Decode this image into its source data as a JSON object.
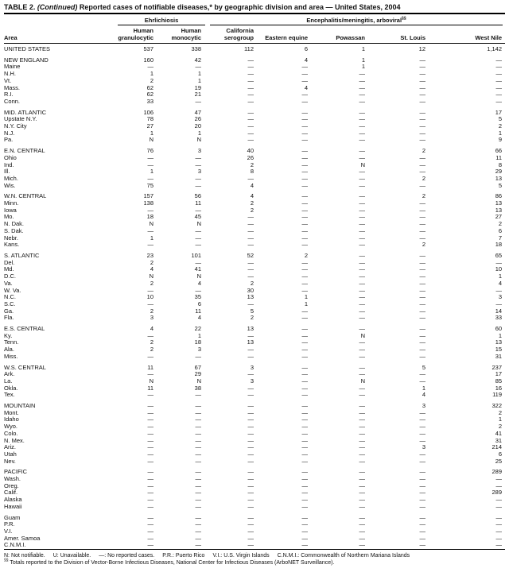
{
  "title": {
    "prefix": "TABLE 2.",
    "continued": "(Continued)",
    "rest": "Reported cases of notifiable diseases,* by geographic division and area — United States, 2004"
  },
  "header": {
    "area_label": "Area",
    "groups": [
      {
        "label": "Ehrlichiosis",
        "sup": "",
        "span": 2
      },
      {
        "label": "Encephalitis/meningitis,  arboviral",
        "sup": "§§",
        "span": 5
      }
    ],
    "columns": [
      "Human granulocytic",
      "Human monocytic",
      "California serogroup",
      "Eastern equine",
      "Powassan",
      "St. Louis",
      "West Nile"
    ]
  },
  "chart_data": {
    "type": "table",
    "title": "TABLE 2. (Continued) Reported cases of notifiable diseases, by geographic division and area — United States, 2004",
    "columns": [
      "Area",
      "Ehrlichiosis: Human granulocytic",
      "Ehrlichiosis: Human monocytic",
      "Encephalitis/meningitis, arboviral: California serogroup",
      "Eastern equine",
      "Powassan",
      "St. Louis",
      "West Nile"
    ]
  },
  "table": {
    "sections": [
      {
        "rows": [
          {
            "area": "UNITED STATES",
            "values": [
              "537",
              "338",
              "112",
              "6",
              "1",
              "12",
              "1,142"
            ]
          }
        ]
      },
      {
        "rows": [
          {
            "area": "NEW ENGLAND",
            "values": [
              "160",
              "42",
              "—",
              "4",
              "1",
              "—",
              "—"
            ]
          },
          {
            "area": "Maine",
            "values": [
              "—",
              "—",
              "—",
              "—",
              "1",
              "—",
              "—"
            ]
          },
          {
            "area": "N.H.",
            "values": [
              "1",
              "1",
              "—",
              "—",
              "—",
              "—",
              "—"
            ]
          },
          {
            "area": "Vt.",
            "values": [
              "2",
              "1",
              "—",
              "—",
              "—",
              "—",
              "—"
            ]
          },
          {
            "area": "Mass.",
            "values": [
              "62",
              "19",
              "—",
              "4",
              "—",
              "—",
              "—"
            ]
          },
          {
            "area": "R.I.",
            "values": [
              "62",
              "21",
              "—",
              "—",
              "—",
              "—",
              "—"
            ]
          },
          {
            "area": "Conn.",
            "values": [
              "33",
              "—",
              "—",
              "—",
              "—",
              "—",
              "—"
            ]
          }
        ]
      },
      {
        "rows": [
          {
            "area": "MID. ATLANTIC",
            "values": [
              "106",
              "47",
              "—",
              "—",
              "—",
              "—",
              "17"
            ]
          },
          {
            "area": "Upstate N.Y.",
            "values": [
              "78",
              "26",
              "—",
              "—",
              "—",
              "—",
              "5"
            ]
          },
          {
            "area": "N.Y. City",
            "values": [
              "27",
              "20",
              "—",
              "—",
              "—",
              "—",
              "2"
            ]
          },
          {
            "area": "N.J.",
            "values": [
              "1",
              "1",
              "—",
              "—",
              "—",
              "—",
              "1"
            ]
          },
          {
            "area": "Pa.",
            "values": [
              "N",
              "N",
              "—",
              "—",
              "—",
              "—",
              "9"
            ]
          }
        ]
      },
      {
        "rows": [
          {
            "area": "E.N. CENTRAL",
            "values": [
              "76",
              "3",
              "40",
              "—",
              "—",
              "2",
              "66"
            ]
          },
          {
            "area": "Ohio",
            "values": [
              "—",
              "—",
              "26",
              "—",
              "—",
              "—",
              "11"
            ]
          },
          {
            "area": "Ind.",
            "values": [
              "—",
              "—",
              "2",
              "—",
              "N",
              "—",
              "8"
            ]
          },
          {
            "area": "Ill.",
            "values": [
              "1",
              "3",
              "8",
              "—",
              "—",
              "—",
              "29"
            ]
          },
          {
            "area": "Mich.",
            "values": [
              "—",
              "—",
              "—",
              "—",
              "—",
              "2",
              "13"
            ]
          },
          {
            "area": "Wis.",
            "values": [
              "75",
              "—",
              "4",
              "—",
              "—",
              "—",
              "5"
            ]
          }
        ]
      },
      {
        "rows": [
          {
            "area": "W.N. CENTRAL",
            "values": [
              "157",
              "56",
              "4",
              "—",
              "—",
              "2",
              "86"
            ]
          },
          {
            "area": "Minn.",
            "values": [
              "138",
              "11",
              "2",
              "—",
              "—",
              "—",
              "13"
            ]
          },
          {
            "area": "Iowa",
            "values": [
              "—",
              "—",
              "2",
              "—",
              "—",
              "—",
              "13"
            ]
          },
          {
            "area": "Mo.",
            "values": [
              "18",
              "45",
              "—",
              "—",
              "—",
              "—",
              "27"
            ]
          },
          {
            "area": "N. Dak.",
            "values": [
              "N",
              "N",
              "—",
              "—",
              "—",
              "—",
              "2"
            ]
          },
          {
            "area": "S. Dak.",
            "values": [
              "—",
              "—",
              "—",
              "—",
              "—",
              "—",
              "6"
            ]
          },
          {
            "area": "Nebr.",
            "values": [
              "1",
              "—",
              "—",
              "—",
              "—",
              "—",
              "7"
            ]
          },
          {
            "area": "Kans.",
            "values": [
              "—",
              "—",
              "—",
              "—",
              "—",
              "2",
              "18"
            ]
          }
        ]
      },
      {
        "rows": [
          {
            "area": "S. ATLANTIC",
            "values": [
              "23",
              "101",
              "52",
              "2",
              "—",
              "—",
              "65"
            ]
          },
          {
            "area": "Del.",
            "values": [
              "2",
              "—",
              "—",
              "—",
              "—",
              "—",
              "—"
            ]
          },
          {
            "area": "Md.",
            "values": [
              "4",
              "41",
              "—",
              "—",
              "—",
              "—",
              "10"
            ]
          },
          {
            "area": "D.C.",
            "values": [
              "N",
              "N",
              "—",
              "—",
              "—",
              "—",
              "1"
            ]
          },
          {
            "area": "Va.",
            "values": [
              "2",
              "4",
              "2",
              "—",
              "—",
              "—",
              "4"
            ]
          },
          {
            "area": "W. Va.",
            "values": [
              "—",
              "—",
              "30",
              "—",
              "—",
              "—",
              "—"
            ]
          },
          {
            "area": "N.C.",
            "values": [
              "10",
              "35",
              "13",
              "1",
              "—",
              "—",
              "3"
            ]
          },
          {
            "area": "S.C.",
            "values": [
              "—",
              "6",
              "—",
              "1",
              "—",
              "—",
              "—"
            ]
          },
          {
            "area": "Ga.",
            "values": [
              "2",
              "11",
              "5",
              "—",
              "—",
              "—",
              "14"
            ]
          },
          {
            "area": "Fla.",
            "values": [
              "3",
              "4",
              "2",
              "—",
              "—",
              "—",
              "33"
            ]
          }
        ]
      },
      {
        "rows": [
          {
            "area": "E.S. CENTRAL",
            "values": [
              "4",
              "22",
              "13",
              "—",
              "—",
              "—",
              "60"
            ]
          },
          {
            "area": "Ky.",
            "values": [
              "—",
              "1",
              "—",
              "—",
              "N",
              "—",
              "1"
            ]
          },
          {
            "area": "Tenn.",
            "values": [
              "2",
              "18",
              "13",
              "—",
              "—",
              "—",
              "13"
            ]
          },
          {
            "area": "Ala.",
            "values": [
              "2",
              "3",
              "—",
              "—",
              "—",
              "—",
              "15"
            ]
          },
          {
            "area": "Miss.",
            "values": [
              "—",
              "—",
              "—",
              "—",
              "—",
              "—",
              "31"
            ]
          }
        ]
      },
      {
        "rows": [
          {
            "area": "W.S. CENTRAL",
            "values": [
              "11",
              "67",
              "3",
              "—",
              "—",
              "5",
              "237"
            ]
          },
          {
            "area": "Ark.",
            "values": [
              "—",
              "29",
              "—",
              "—",
              "—",
              "—",
              "17"
            ]
          },
          {
            "area": "La.",
            "values": [
              "N",
              "N",
              "3",
              "—",
              "N",
              "—",
              "85"
            ]
          },
          {
            "area": "Okla.",
            "values": [
              "11",
              "38",
              "—",
              "—",
              "—",
              "1",
              "16"
            ]
          },
          {
            "area": "Tex.",
            "values": [
              "—",
              "—",
              "—",
              "—",
              "—",
              "4",
              "119"
            ]
          }
        ]
      },
      {
        "rows": [
          {
            "area": "MOUNTAIN",
            "values": [
              "—",
              "—",
              "—",
              "—",
              "—",
              "3",
              "322"
            ]
          },
          {
            "area": "Mont.",
            "values": [
              "—",
              "—",
              "—",
              "—",
              "—",
              "—",
              "2"
            ]
          },
          {
            "area": "Idaho",
            "values": [
              "—",
              "—",
              "—",
              "—",
              "—",
              "—",
              "1"
            ]
          },
          {
            "area": "Wyo.",
            "values": [
              "—",
              "—",
              "—",
              "—",
              "—",
              "—",
              "2"
            ]
          },
          {
            "area": "Colo.",
            "values": [
              "—",
              "—",
              "—",
              "—",
              "—",
              "—",
              "41"
            ]
          },
          {
            "area": "N. Mex.",
            "values": [
              "—",
              "—",
              "—",
              "—",
              "—",
              "—",
              "31"
            ]
          },
          {
            "area": "Ariz.",
            "values": [
              "—",
              "—",
              "—",
              "—",
              "—",
              "3",
              "214"
            ]
          },
          {
            "area": "Utah",
            "values": [
              "—",
              "—",
              "—",
              "—",
              "—",
              "—",
              "6"
            ]
          },
          {
            "area": "Nev.",
            "values": [
              "—",
              "—",
              "—",
              "—",
              "—",
              "—",
              "25"
            ]
          }
        ]
      },
      {
        "rows": [
          {
            "area": "PACIFIC",
            "values": [
              "—",
              "—",
              "—",
              "—",
              "—",
              "—",
              "289"
            ]
          },
          {
            "area": "Wash.",
            "values": [
              "—",
              "—",
              "—",
              "—",
              "—",
              "—",
              "—"
            ]
          },
          {
            "area": "Oreg.",
            "values": [
              "—",
              "—",
              "—",
              "—",
              "—",
              "—",
              "—"
            ]
          },
          {
            "area": "Calif.",
            "values": [
              "—",
              "—",
              "—",
              "—",
              "—",
              "—",
              "289"
            ]
          },
          {
            "area": "Alaska",
            "values": [
              "—",
              "—",
              "—",
              "—",
              "—",
              "—",
              "—"
            ]
          },
          {
            "area": "Hawaii",
            "values": [
              "—",
              "—",
              "—",
              "—",
              "—",
              "—",
              "—"
            ]
          }
        ]
      },
      {
        "rows": [
          {
            "area": "Guam",
            "values": [
              "—",
              "—",
              "—",
              "—",
              "—",
              "—",
              "—"
            ]
          },
          {
            "area": "P.R.",
            "values": [
              "—",
              "—",
              "—",
              "—",
              "—",
              "—",
              "—"
            ]
          },
          {
            "area": "V.I.",
            "values": [
              "—",
              "—",
              "—",
              "—",
              "—",
              "—",
              "—"
            ]
          },
          {
            "area": "Amer. Samoa",
            "values": [
              "—",
              "—",
              "—",
              "—",
              "—",
              "—",
              "—"
            ]
          },
          {
            "area": "C.N.M.I.",
            "values": [
              "—",
              "—",
              "—",
              "—",
              "—",
              "—",
              "—"
            ]
          }
        ]
      }
    ]
  },
  "footnotes": {
    "legend": [
      "N: Not notifiable.",
      "U: Unavailable.",
      "—: No reported cases.",
      "P.R.: Puerto Rico",
      "V.I.: U.S. Virgin Islands",
      "C.N.M.I.: Commonwealth of Northern Mariana Islands"
    ],
    "arbo_sup": "§§",
    "arbo_text": " Totals reported to the Division of Vector-Borne Infectious Diseases, National Center for Infectious Diseases (ArboNET Surveillance)."
  }
}
